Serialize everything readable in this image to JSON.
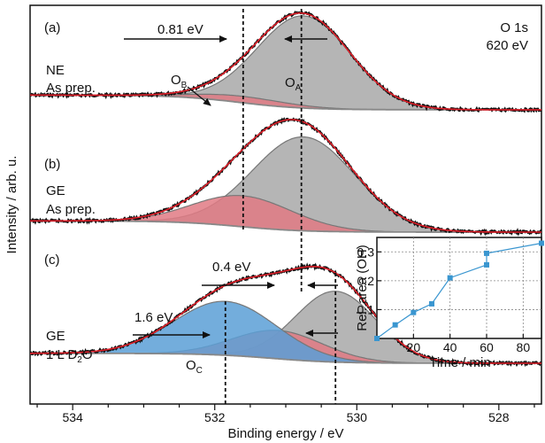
{
  "chart_data": [
    {
      "type": "line",
      "title": "",
      "xlabel": "Binding energy / eV",
      "ylabel": "Intensity / arb. u.",
      "xlim": [
        534.6,
        527.4
      ],
      "x_reversed": true,
      "x_ticks": [
        534,
        532,
        530,
        528
      ],
      "x_tick_labels": [
        "534",
        "532",
        "530",
        "528"
      ],
      "grid": false,
      "colors": {
        "data": "#111111",
        "fit": "#e0202a",
        "oa_fill": "#a8a8a8",
        "ob_fill": "#e07a84",
        "oc_fill": "#5a9fd6",
        "background": "#888888"
      },
      "panels": [
        {
          "label": "(a)",
          "sample": [
            "NE",
            "As prep."
          ],
          "corner_text": [
            "O 1s",
            "620 eV"
          ],
          "baseline_left": 0.18,
          "baseline_right": 0.02,
          "components": [
            {
              "name": "OA",
              "label": "O",
              "sub": "A",
              "center": 530.75,
              "height": 1.0,
              "fwhm": 1.55,
              "type": "oa"
            },
            {
              "name": "OB",
              "label": "O",
              "sub": "B",
              "center": 531.6,
              "height": 0.07,
              "fwhm": 1.5,
              "type": "ob"
            }
          ],
          "annotations": [
            {
              "text": "0.81 eV",
              "from": 532.5,
              "to": 531.6
            }
          ],
          "dashed_lines": [
            531.6,
            530.78
          ]
        },
        {
          "label": "(b)",
          "sample": [
            "GE",
            "As prep."
          ],
          "components": [
            {
              "name": "OA",
              "center": 530.75,
              "height": 1.0,
              "fwhm": 1.7,
              "type": "oa"
            },
            {
              "name": "OB",
              "center": 531.6,
              "height": 0.33,
              "fwhm": 1.65,
              "type": "ob"
            }
          ],
          "baseline_left": 0.12,
          "baseline_right": 0.0
        },
        {
          "label": "(c)",
          "sample": [
            "GE",
            "1 L D2O"
          ],
          "components": [
            {
              "name": "OA",
              "center": 530.3,
              "height": 1.0,
              "fwhm": 1.35,
              "type": "oa"
            },
            {
              "name": "OB",
              "center": 531.1,
              "height": 0.4,
              "fwhm": 1.5,
              "type": "ob"
            },
            {
              "name": "OC",
              "label": "O",
              "sub": "C",
              "center": 531.85,
              "height": 0.76,
              "fwhm": 1.7,
              "type": "oc"
            }
          ],
          "baseline_left": 0.14,
          "baseline_right": 0.0,
          "annotations": [
            {
              "text": "0.4 eV",
              "from": 531.9,
              "to": 530.75
            },
            {
              "text": "1.6 eV",
              "from": 533.0,
              "to": 531.85
            }
          ],
          "dashed_lines": [
            531.85,
            530.3
          ]
        }
      ]
    },
    {
      "type": "line",
      "title": "",
      "xlabel": "Time / min",
      "ylabel": "Rel. area (OH)",
      "xlim": [
        0,
        90
      ],
      "ylim": [
        0,
        0.35
      ],
      "x_ticks": [
        20,
        40,
        60,
        80
      ],
      "x_tick_labels": [
        "20",
        "40",
        "60",
        "80"
      ],
      "y_ticks": [
        0.1,
        0.2,
        0.3
      ],
      "y_tick_labels": [
        "0.1",
        "0.2",
        "0.3"
      ],
      "grid": true,
      "series": [
        {
          "x": [
            0,
            10,
            20,
            30,
            40,
            60,
            60,
            90
          ],
          "y": [
            0.0,
            0.047,
            0.09,
            0.12,
            0.21,
            0.255,
            0.295,
            0.33
          ]
        }
      ],
      "color": "#3a96d0"
    }
  ],
  "labels": {
    "ylabel": "Intensity / arb. u.",
    "xlabel": "Binding energy / eV",
    "panel_a": "(a)",
    "panel_b": "(b)",
    "panel_c": "(c)",
    "corner_1": "O 1s",
    "corner_2": "620 eV",
    "ne": "NE",
    "as_prep_a": "As prep.",
    "ge_b": "GE",
    "as_prep_b": "As prep.",
    "ge_c": "GE",
    "d2o_prefix": "1 L D",
    "d2o_sub": "2",
    "d2o_suffix": "O",
    "ob_main": "O",
    "ob_sub": "B",
    "oa_main": "O",
    "oa_sub": "A",
    "oc_main": "O",
    "oc_sub": "C",
    "ann_081": "0.81 eV",
    "ann_04": "0.4 eV",
    "ann_16": "1.6 eV",
    "ins_ylabel": "Rel. area (OH)",
    "ins_xlabel": "Time / min"
  }
}
